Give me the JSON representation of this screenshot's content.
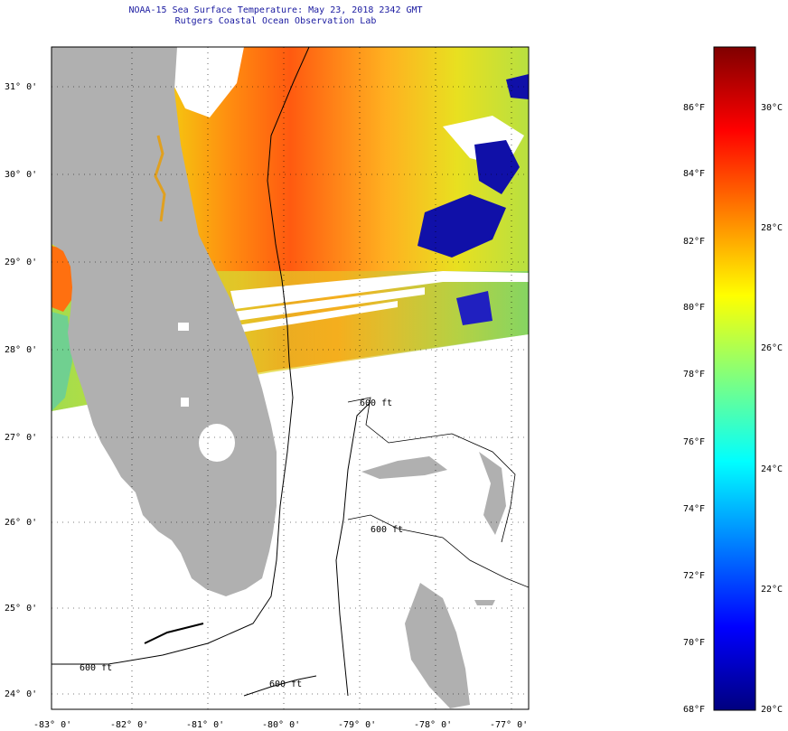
{
  "title": {
    "line1": "NOAA-15 Sea Surface Temperature:  May 23, 2018 2342 GMT",
    "line2": "Rutgers Coastal Ocean Observation Lab"
  },
  "axes": {
    "lon_ticks": [
      "-83° 0'",
      "-82° 0'",
      "-81° 0'",
      "-80° 0'",
      "-79° 0'",
      "-78° 0'",
      "-77° 0'"
    ],
    "lat_ticks": [
      "31° 0'",
      "30° 0'",
      "29° 0'",
      "28° 0'",
      "27° 0'",
      "26° 0'",
      "25° 0'",
      "24° 0'"
    ]
  },
  "contour_labels": [
    "600 ft",
    "600 ft",
    "600 ft",
    "600 ft"
  ],
  "colorbar": {
    "f_labels": [
      "86°F",
      "84°F",
      "82°F",
      "80°F",
      "78°F",
      "76°F",
      "74°F",
      "72°F",
      "70°F",
      "68°F"
    ],
    "c_labels": [
      "30°C",
      "28°C",
      "26°C",
      "24°C",
      "22°C",
      "20°C"
    ]
  },
  "colors": {
    "land": "#b0b0b0",
    "title": "#1a1aa0",
    "colorbar_stops": [
      "#00007f",
      "#0000ff",
      "#007fff",
      "#00ffff",
      "#7fff7f",
      "#ffff00",
      "#ff7f00",
      "#ff0000",
      "#7f0000"
    ]
  }
}
